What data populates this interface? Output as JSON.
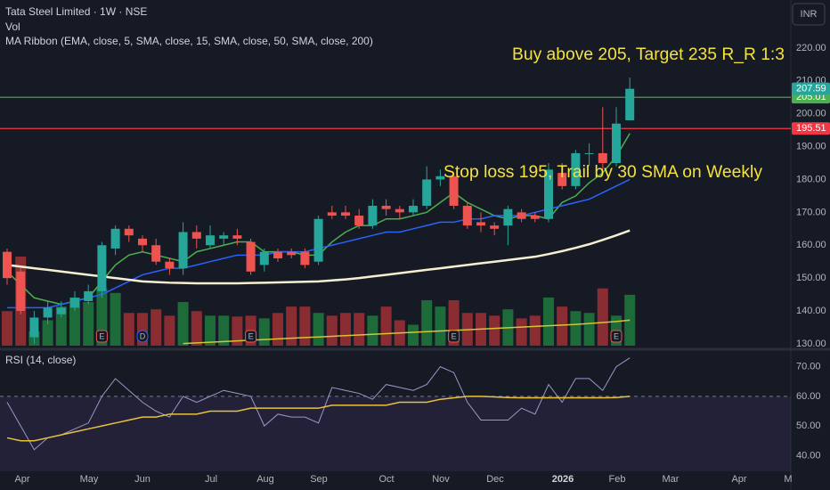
{
  "chart_data": {
    "type": "candlestick",
    "title": "Tata Steel Limited · 1W · NSE",
    "volume_label": "Vol",
    "ribbon_label": "MA Ribbon (EMA, close, 5, SMA, close, 15, SMA, close, 50, SMA, close, 200)",
    "currency": "INR",
    "x_labels": [
      "Apr",
      "May",
      "Jun",
      "Jul",
      "Aug",
      "Sep",
      "Oct",
      "Nov",
      "Dec",
      "2026",
      "Feb",
      "Mar",
      "Apr",
      "M"
    ],
    "open": [
      158,
      152,
      132,
      138,
      139,
      141,
      143,
      146,
      159,
      165,
      162,
      160,
      155,
      153,
      164,
      160,
      162,
      163,
      161,
      154,
      158,
      158,
      158,
      155,
      170,
      170,
      169,
      166,
      172,
      171,
      170,
      172,
      180,
      181,
      172,
      167,
      166,
      166,
      170,
      169,
      168,
      182,
      178,
      188,
      188,
      185,
      198
    ],
    "high": [
      159,
      153,
      140,
      143,
      143,
      146,
      148,
      161,
      166,
      166,
      163,
      162,
      156,
      167,
      166,
      166,
      164,
      165,
      162,
      159,
      159,
      159,
      159,
      169,
      172,
      172,
      171,
      174,
      174,
      172,
      174,
      184,
      183,
      182,
      173,
      170,
      167,
      172,
      171,
      170,
      185,
      185,
      189,
      191,
      202,
      202,
      211
    ],
    "low": [
      148,
      139,
      130,
      136,
      138,
      140,
      142,
      144,
      157,
      161,
      158,
      154,
      151,
      151,
      159,
      159,
      160,
      160,
      151,
      152,
      155,
      156,
      153,
      154,
      168,
      168,
      165,
      165,
      169,
      168,
      169,
      171,
      178,
      171,
      165,
      164,
      163,
      160,
      167,
      167,
      167,
      177,
      177,
      184,
      183,
      184,
      198
    ],
    "close": [
      150,
      140,
      138,
      141,
      141,
      144,
      146,
      160,
      165,
      163,
      160,
      155,
      153,
      164,
      162,
      163,
      163,
      162,
      152,
      158,
      156,
      157,
      154,
      168,
      169,
      169,
      166,
      172,
      171,
      170,
      172,
      180,
      181,
      172,
      166,
      166,
      165,
      171,
      168,
      168,
      183,
      178,
      188,
      188,
      185,
      197,
      207.59
    ],
    "volume": [
      38,
      98,
      16,
      28,
      43,
      53,
      48,
      63,
      58,
      36,
      36,
      40,
      33,
      48,
      38,
      33,
      33,
      32,
      33,
      30,
      36,
      43,
      43,
      36,
      33,
      36,
      36,
      33,
      43,
      28,
      23,
      50,
      43,
      50,
      36,
      36,
      33,
      40,
      30,
      33,
      53,
      43,
      38,
      36,
      63,
      33,
      56
    ],
    "up_color": "#26a69a",
    "down_color": "#ef5350",
    "volume_up_color": "#1e6b3a",
    "volume_down_color": "#8a2d33",
    "ma_series": [
      {
        "color": "#4caf50",
        "values": [
          152,
          148,
          144,
          143,
          142,
          143,
          144,
          149,
          154,
          157,
          158,
          157,
          156,
          155,
          158,
          159,
          160,
          161,
          161,
          158,
          158,
          158,
          157,
          157,
          161,
          164,
          166,
          166,
          168,
          168,
          169,
          170,
          173,
          176,
          173,
          171,
          169,
          168,
          169,
          169,
          168,
          173,
          175,
          179,
          182,
          187,
          194
        ]
      },
      {
        "color": "#2962ff",
        "values": [
          141,
          141,
          141,
          141,
          142,
          143,
          144,
          145,
          147,
          149,
          151,
          152,
          153,
          153,
          154,
          155,
          156,
          157,
          157,
          157,
          158,
          158,
          158,
          159,
          160,
          161,
          162,
          163,
          164,
          164,
          165,
          166,
          167,
          167,
          168,
          168,
          169,
          169,
          169,
          170,
          171,
          172,
          173,
          174,
          176,
          178,
          180
        ]
      },
      {
        "color": "#f5f0d0",
        "values": [
          154,
          153.5,
          153,
          152.5,
          152,
          151.5,
          151,
          150.5,
          150,
          149.5,
          149,
          148.8,
          148.6,
          148.5,
          148.4,
          148.4,
          148.4,
          148.4,
          148.5,
          148.6,
          148.7,
          148.8,
          148.9,
          149,
          149.3,
          149.6,
          150,
          150.5,
          151,
          151.5,
          152,
          152.5,
          153,
          153.5,
          154,
          154.5,
          155,
          155.5,
          156,
          156.5,
          157.3,
          158.2,
          159.2,
          160.3,
          161.6,
          163,
          164.5
        ]
      },
      {
        "color": "#d4c533",
        "values": [
          null,
          null,
          null,
          null,
          null,
          null,
          null,
          null,
          null,
          null,
          null,
          null,
          null,
          130.1,
          130.3,
          130.5,
          130.7,
          130.9,
          131.1,
          131.3,
          131.5,
          131.7,
          131.9,
          132.1,
          132.3,
          132.5,
          132.7,
          132.9,
          133.1,
          133.3,
          133.5,
          133.7,
          133.9,
          134.1,
          134.3,
          134.5,
          134.7,
          134.9,
          135.1,
          135.3,
          135.5,
          135.7,
          135.9,
          136.2,
          136.5,
          136.8,
          137.2
        ]
      }
    ],
    "levels": [
      {
        "value": 205.01,
        "color": "#4caf50"
      },
      {
        "value": 195.51,
        "color": "#f23645"
      }
    ],
    "ylim": [
      128.9,
      234.6
    ],
    "yticks": [
      {
        "value": 130,
        "label": "130.00"
      },
      {
        "value": 140,
        "label": "140.00"
      },
      {
        "value": 150,
        "label": "150.00"
      },
      {
        "value": 160,
        "label": "160.00"
      },
      {
        "value": 170,
        "label": "170.00"
      },
      {
        "value": 180,
        "label": "180.00"
      },
      {
        "value": 190,
        "label": "190.00"
      },
      {
        "value": 200,
        "label": "200.00"
      },
      {
        "value": 210,
        "label": "210.00"
      },
      {
        "value": 220,
        "label": "220.00"
      }
    ],
    "annotations": [
      {
        "text": "Buy above 205, Target 235 R_R 1:3",
        "color": "#f5e23c"
      },
      {
        "text": "Stop loss 195, Trail by 30 SMA on Weekly",
        "color": "#f5e23c"
      }
    ],
    "events": [
      "E",
      "D",
      "E",
      "E",
      "E"
    ],
    "rsi": {
      "label": "RSI (14, close)",
      "color": "#9c98c8",
      "ma_color": "#e8c33a",
      "values": [
        58,
        50,
        42,
        46,
        47,
        49,
        51,
        60,
        66,
        62,
        58,
        55,
        53,
        60,
        58,
        60,
        62,
        61,
        60,
        50,
        54,
        53,
        53,
        51,
        63,
        62,
        61,
        59,
        64,
        63,
        62,
        64,
        70,
        68,
        58,
        52,
        52,
        52,
        56,
        54,
        64,
        58,
        66,
        66,
        62,
        70,
        73
      ],
      "ma": [
        46,
        45,
        45,
        46,
        47,
        48,
        49,
        50,
        51,
        52,
        53,
        53,
        54,
        54,
        54,
        55,
        55,
        55,
        56,
        56,
        56,
        56,
        56,
        56,
        57,
        57,
        57,
        57,
        57,
        58,
        58,
        58,
        59,
        59.5,
        60,
        60,
        59.8,
        59.6,
        59.5,
        59.5,
        59.5,
        59.5,
        59.5,
        59.5,
        59.5,
        59.6,
        60
      ],
      "band": [
        30,
        60
      ],
      "ylim": [
        35,
        75
      ],
      "yticks": [
        {
          "value": 40,
          "label": "40.00"
        },
        {
          "value": 50,
          "label": "50.00"
        },
        {
          "value": 60,
          "label": "60.00"
        },
        {
          "value": 70,
          "label": "70.00"
        }
      ]
    }
  }
}
